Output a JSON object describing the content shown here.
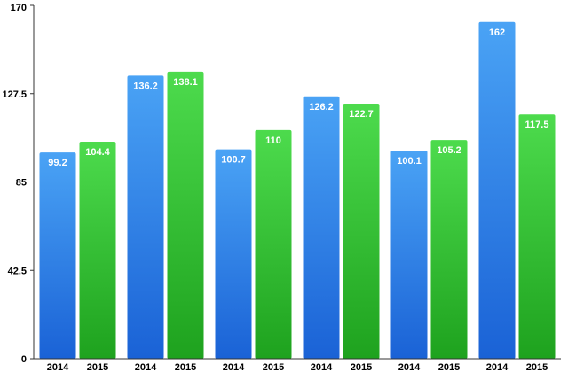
{
  "chart_data": {
    "type": "bar",
    "groups": [
      {
        "labels": [
          "2014",
          "2015"
        ],
        "values": [
          99.2,
          104.4
        ]
      },
      {
        "labels": [
          "2014",
          "2015"
        ],
        "values": [
          136.2,
          138.1
        ]
      },
      {
        "labels": [
          "2014",
          "2015"
        ],
        "values": [
          100.7,
          110
        ]
      },
      {
        "labels": [
          "2014",
          "2015"
        ],
        "values": [
          126.2,
          122.7
        ]
      },
      {
        "labels": [
          "2014",
          "2015"
        ],
        "values": [
          100.1,
          105.2
        ]
      },
      {
        "labels": [
          "2014",
          "2015"
        ],
        "values": [
          162,
          117.5
        ]
      }
    ],
    "series": [
      {
        "name": "",
        "values": [
          99.2,
          136.2,
          100.7,
          126.2,
          100.1,
          162
        ]
      },
      {
        "name": "",
        "values": [
          104.4,
          138.1,
          110,
          122.7,
          105.2,
          117.5
        ]
      }
    ],
    "yticks": [
      "0",
      "42.5",
      "85",
      "127.5",
      "170"
    ],
    "ylim": [
      0,
      170
    ],
    "grid": false,
    "colors": {
      "bar_2014_top": "#4aa3f5",
      "bar_2014_bottom": "#1a62d6",
      "bar_2015_top": "#4ddb4d",
      "bar_2015_bottom": "#1ea21e"
    }
  }
}
